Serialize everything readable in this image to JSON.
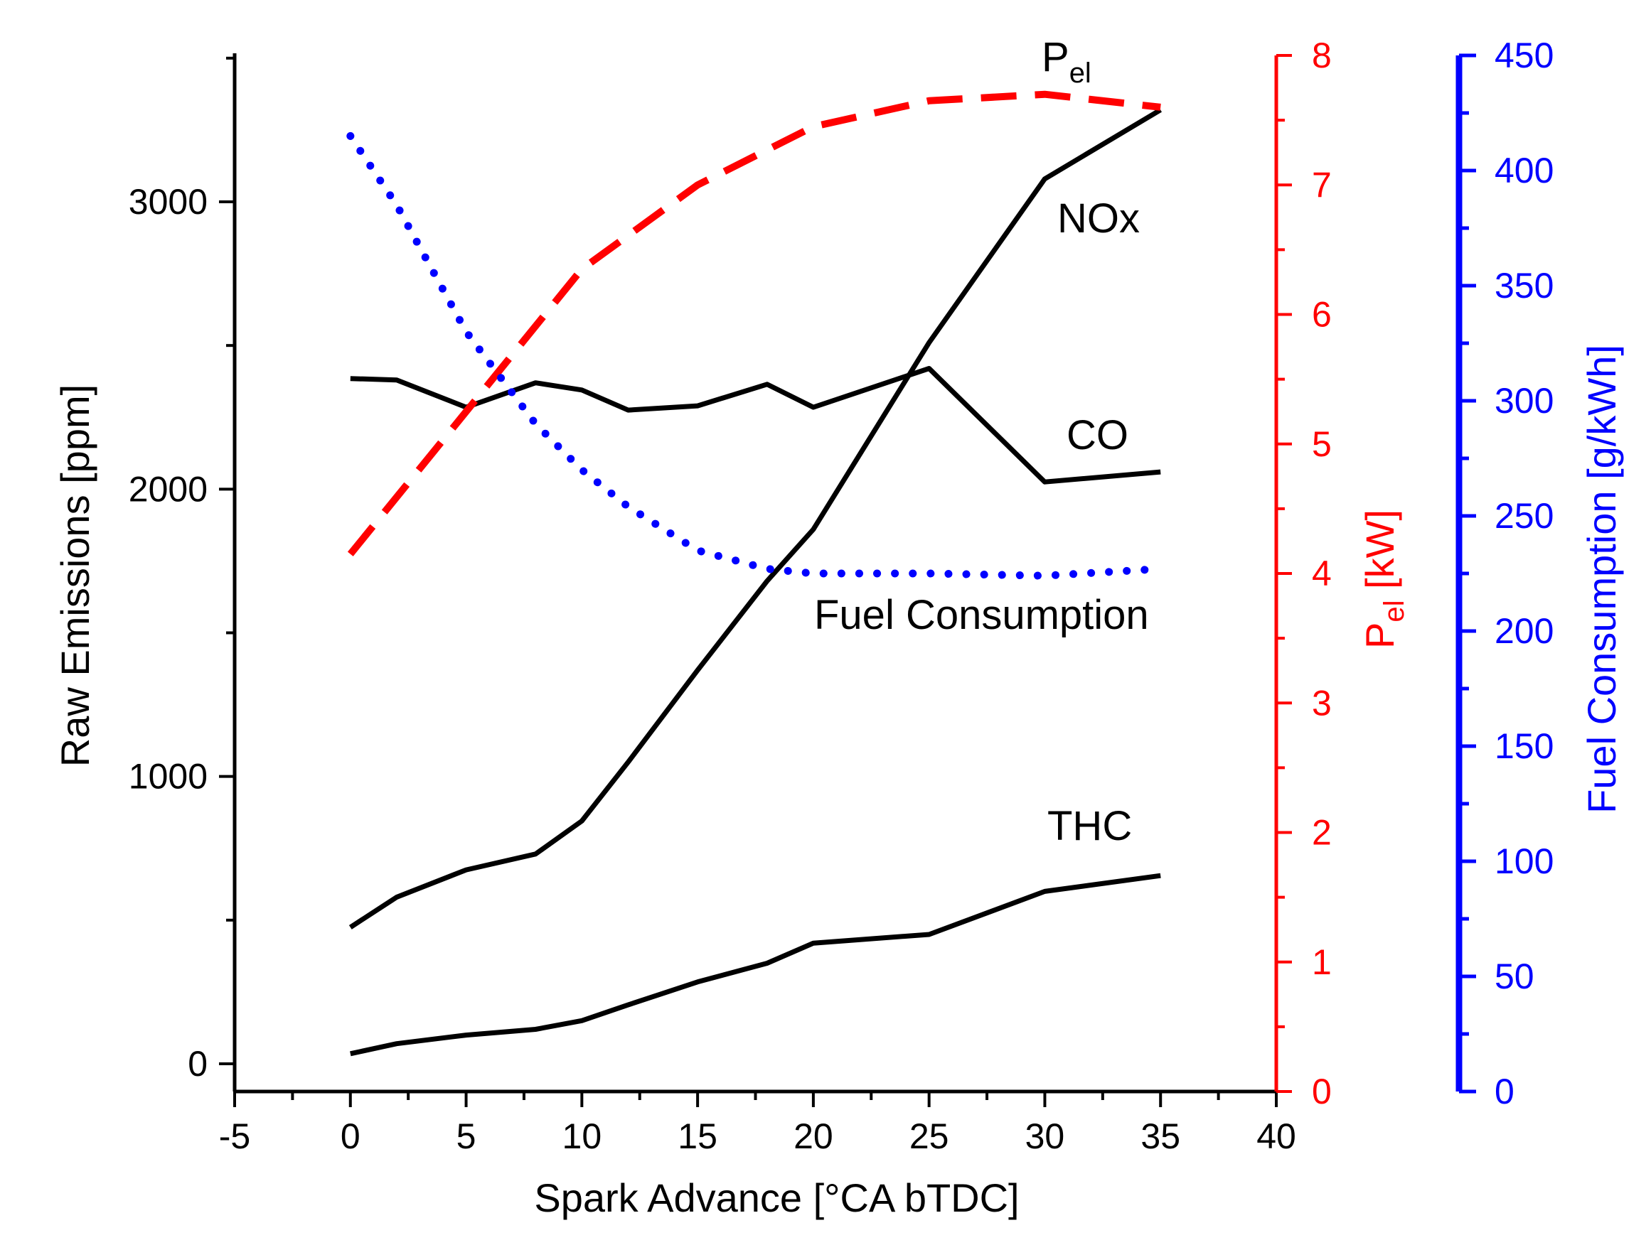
{
  "chart_data": {
    "type": "line",
    "xlabel": "Spark Advance [°CA bTDC]",
    "x_axis": {
      "range": [
        -5,
        40
      ],
      "ticks": [
        -5,
        0,
        5,
        10,
        15,
        20,
        25,
        30,
        35,
        40
      ],
      "tick_labels": [
        "-5",
        "0",
        "5",
        "10",
        "15",
        "20",
        "25",
        "30",
        "35",
        "40"
      ]
    },
    "left_axis": {
      "label": "Raw Emissions [ppm]",
      "range": [
        -100,
        3500
      ],
      "ticks": [
        0,
        1000,
        2000,
        3000
      ],
      "tick_labels": [
        "0",
        "1000",
        "2000",
        "3000"
      ],
      "color": "#000000"
    },
    "right_axis_power": {
      "label_main": "P",
      "label_sub": "el",
      "label_unit": " [kW]",
      "range": [
        0,
        8
      ],
      "ticks": [
        0,
        1,
        2,
        3,
        4,
        5,
        6,
        7,
        8
      ],
      "tick_labels": [
        "0",
        "1",
        "2",
        "3",
        "4",
        "5",
        "6",
        "7",
        "8"
      ],
      "color": "#ff0000"
    },
    "right_axis_fuel": {
      "label": "Fuel Consumption [g/kWh]",
      "range": [
        0,
        450
      ],
      "ticks": [
        0,
        50,
        100,
        150,
        200,
        250,
        300,
        350,
        400,
        450
      ],
      "tick_labels": [
        "0",
        "50",
        "100",
        "150",
        "200",
        "250",
        "300",
        "350",
        "400",
        "450"
      ],
      "color": "#0000ff"
    },
    "series": [
      {
        "name": "NOx",
        "axis": "left",
        "style": "solid",
        "color": "#000000",
        "x": [
          0,
          2,
          5,
          8,
          10,
          12,
          15,
          18,
          20,
          25,
          30,
          35
        ],
        "values": [
          475,
          580,
          675,
          730,
          845,
          1050,
          1370,
          1680,
          1860,
          2510,
          3080,
          3320
        ]
      },
      {
        "name": "CO",
        "axis": "left",
        "style": "solid",
        "color": "#000000",
        "x": [
          0,
          2,
          5,
          8,
          10,
          12,
          15,
          18,
          20,
          25,
          30,
          35
        ],
        "values": [
          2385,
          2380,
          2285,
          2370,
          2345,
          2275,
          2290,
          2365,
          2285,
          2420,
          2025,
          2060
        ]
      },
      {
        "name": "THC",
        "axis": "left",
        "style": "solid",
        "color": "#000000",
        "x": [
          0,
          2,
          5,
          8,
          10,
          12,
          15,
          18,
          20,
          25,
          30,
          35
        ],
        "values": [
          35,
          70,
          100,
          120,
          150,
          205,
          285,
          350,
          420,
          450,
          600,
          655
        ]
      },
      {
        "name": "Pel",
        "axis": "right_power",
        "style": "dashed",
        "color": "#ff0000",
        "x": [
          0,
          5,
          10,
          15,
          20,
          25,
          30,
          35
        ],
        "values": [
          4.15,
          5.25,
          6.35,
          7.0,
          7.45,
          7.65,
          7.7,
          7.6
        ]
      },
      {
        "name": "Fuel Consumption",
        "axis": "right_fuel",
        "style": "dotted",
        "color": "#0000ff",
        "x": [
          0,
          2,
          5,
          8,
          10,
          12,
          15,
          18,
          20,
          25,
          30,
          35
        ],
        "values": [
          415,
          385,
          330,
          290,
          270,
          254,
          235,
          227,
          225,
          225,
          224,
          227
        ]
      }
    ],
    "annotations": [
      {
        "series": "Pel",
        "text_main": "P",
        "text_sub": "el"
      },
      {
        "series": "NOx",
        "text": "NOx"
      },
      {
        "series": "CO",
        "text": "CO"
      },
      {
        "series": "Fuel Consumption",
        "text": "Fuel Consumption"
      },
      {
        "series": "THC",
        "text": "THC"
      }
    ]
  }
}
